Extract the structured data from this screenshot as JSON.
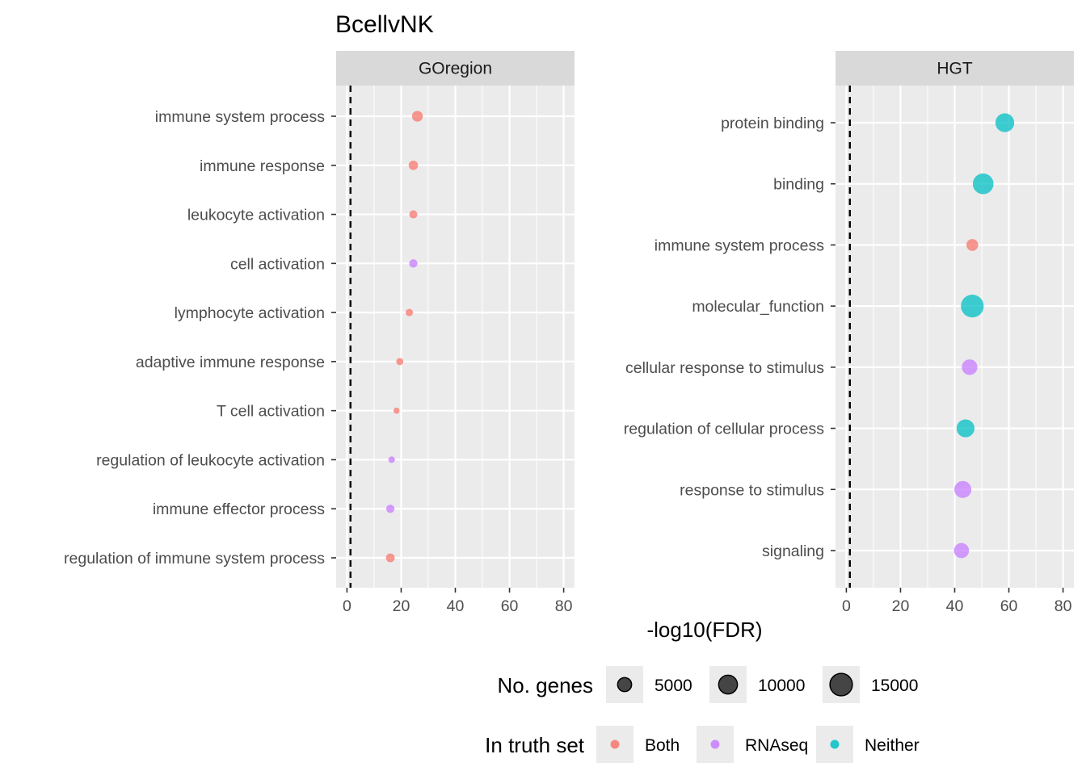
{
  "title": "BcellvNK",
  "xlabel": "-log10(FDR)",
  "legend": {
    "size_title": "No. genes",
    "size_keys": [
      "5000",
      "10000",
      "15000"
    ],
    "color_title": "In truth set",
    "color_keys": [
      "Both",
      "RNAseq",
      "Neither"
    ]
  },
  "colors": {
    "Both": "#F8766D",
    "RNAseq": "#C77CFF",
    "Neither": "#00BFC4",
    "panel_bg": "#EBEBEB",
    "strip_bg": "#D9D9D9",
    "grid": "#FFFFFF"
  },
  "chart_data": [
    {
      "type": "scatter",
      "panel": "GOregion",
      "xlim": [
        -4,
        84
      ],
      "xticks": [
        0,
        20,
        40,
        60,
        80
      ],
      "threshold_x": 1.3,
      "categories": [
        "immune system process",
        "immune response",
        "leukocyte activation",
        "cell activation",
        "lymphocyte activation",
        "adaptive immune response",
        "T cell activation",
        "regulation of leukocyte activation",
        "immune effector process",
        "regulation of immune system process"
      ],
      "points": [
        {
          "category": "immune system process",
          "x": 26,
          "genes": 2600,
          "truth": "Both"
        },
        {
          "category": "immune response",
          "x": 24.5,
          "genes": 1800,
          "truth": "Both"
        },
        {
          "category": "leukocyte activation",
          "x": 24.5,
          "genes": 1200,
          "truth": "Both"
        },
        {
          "category": "cell activation",
          "x": 24.5,
          "genes": 1300,
          "truth": "RNAseq"
        },
        {
          "category": "lymphocyte activation",
          "x": 23,
          "genes": 900,
          "truth": "Both"
        },
        {
          "category": "adaptive immune response",
          "x": 19.5,
          "genes": 850,
          "truth": "Both"
        },
        {
          "category": "T cell activation",
          "x": 18.3,
          "genes": 500,
          "truth": "Both"
        },
        {
          "category": "regulation of leukocyte activation",
          "x": 16.5,
          "genes": 650,
          "truth": "RNAseq"
        },
        {
          "category": "immune effector process",
          "x": 16,
          "genes": 1300,
          "truth": "RNAseq"
        },
        {
          "category": "regulation of immune system process",
          "x": 16,
          "genes": 1500,
          "truth": "Both"
        }
      ]
    },
    {
      "type": "scatter",
      "panel": "HGT",
      "xlim": [
        -4,
        84
      ],
      "xticks": [
        0,
        20,
        40,
        60,
        80
      ],
      "threshold_x": 1.3,
      "categories": [
        "protein binding",
        "binding",
        "immune system process",
        "molecular_function",
        "cellular response to stimulus",
        "regulation of cellular process",
        "response to stimulus",
        "signaling"
      ],
      "points": [
        {
          "category": "protein binding",
          "x": 58.5,
          "genes": 10000,
          "truth": "Neither"
        },
        {
          "category": "binding",
          "x": 50.5,
          "genes": 12500,
          "truth": "Neither"
        },
        {
          "category": "immune system process",
          "x": 46.5,
          "genes": 3300,
          "truth": "Both"
        },
        {
          "category": "molecular_function",
          "x": 46.5,
          "genes": 15500,
          "truth": "Neither"
        },
        {
          "category": "cellular response to stimulus",
          "x": 45.5,
          "genes": 6500,
          "truth": "RNAseq"
        },
        {
          "category": "regulation of cellular process",
          "x": 44,
          "genes": 9000,
          "truth": "Neither"
        },
        {
          "category": "response to stimulus",
          "x": 43,
          "genes": 8000,
          "truth": "RNAseq"
        },
        {
          "category": "signaling",
          "x": 42.5,
          "genes": 6000,
          "truth": "RNAseq"
        }
      ]
    }
  ]
}
